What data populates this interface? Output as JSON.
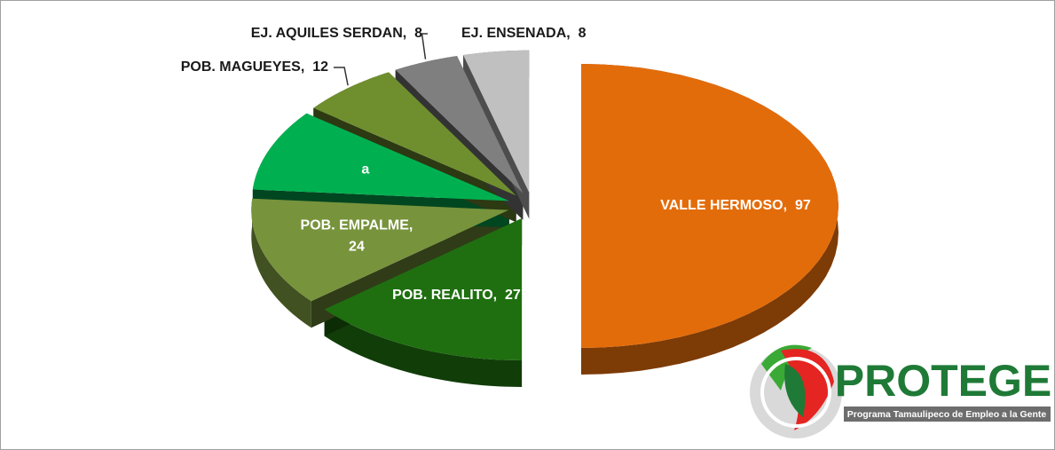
{
  "chart_data": {
    "type": "pie3d",
    "categories": [
      "VALLE HERMOSO",
      "POB. REALITO",
      "POB. EMPALME",
      "a",
      "POB. MAGUEYES",
      "EJ. AQUILES SERDAN",
      "EJ. ENSENADA"
    ],
    "values": [
      97,
      27,
      24,
      18,
      12,
      8,
      8
    ],
    "colors": [
      "#e36c0a",
      "#1f6f10",
      "#77933c",
      "#00b050",
      "#6f8f2f",
      "#7f7f7f",
      "#c0c0c0"
    ]
  },
  "logo": {
    "title": "PROTEGE",
    "subtitle": "Programa Tamaulipeco de Empleo a la Gente"
  }
}
